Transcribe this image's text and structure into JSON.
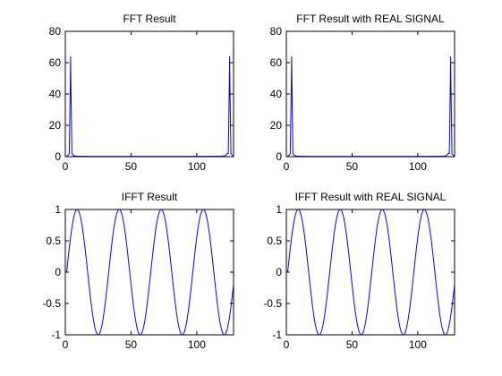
{
  "figure": {
    "background": "#ffffff"
  },
  "chart_data": [
    {
      "type": "line",
      "title": "FFT Result",
      "xlim": [
        0,
        128
      ],
      "ylim": [
        0,
        80
      ],
      "xticks": [
        0,
        50,
        100
      ],
      "yticks": [
        0,
        20,
        40,
        60,
        80
      ],
      "grid": false,
      "series": [
        {
          "color": "#0000ff",
          "x": [
            1,
            2,
            3,
            3.8,
            4,
            4.2,
            5,
            6,
            7,
            8,
            9,
            10,
            20,
            40,
            60,
            80,
            100,
            118,
            119,
            120,
            121,
            122,
            123,
            124,
            124.8,
            125,
            125.2,
            126,
            127,
            128
          ],
          "y": [
            0.5,
            0.8,
            2,
            48,
            64,
            48,
            2,
            0.8,
            0.5,
            0.4,
            0.3,
            0.3,
            0.2,
            0.2,
            0.2,
            0.2,
            0.2,
            0.3,
            0.3,
            0.4,
            0.5,
            0.8,
            2,
            2,
            48,
            64,
            48,
            2,
            0.8,
            0.5
          ]
        }
      ]
    },
    {
      "type": "line",
      "title": "FFT Result with REAL SIGNAL",
      "xlim": [
        0,
        128
      ],
      "ylim": [
        0,
        80
      ],
      "xticks": [
        0,
        50,
        100
      ],
      "yticks": [
        0,
        20,
        40,
        60,
        80
      ],
      "grid": false,
      "series": [
        {
          "color": "#0000ff",
          "x": [
            1,
            2,
            3,
            3.8,
            4,
            4.2,
            5,
            6,
            7,
            8,
            9,
            10,
            20,
            40,
            60,
            80,
            100,
            118,
            119,
            120,
            121,
            122,
            123,
            124,
            124.8,
            125,
            125.2,
            126,
            127,
            128
          ],
          "y": [
            0.5,
            0.8,
            2,
            48,
            64,
            48,
            2,
            0.8,
            0.5,
            0.4,
            0.3,
            0.3,
            0.2,
            0.2,
            0.2,
            0.2,
            0.2,
            0.3,
            0.3,
            0.4,
            0.5,
            0.8,
            2,
            2,
            48,
            64,
            48,
            2,
            0.8,
            0.5
          ]
        }
      ]
    },
    {
      "type": "line",
      "title": "IFFT Result",
      "xlim": [
        0,
        128
      ],
      "ylim": [
        -1,
        1
      ],
      "xticks": [
        0,
        50,
        100
      ],
      "yticks": [
        -1,
        -0.5,
        0,
        0.5,
        1
      ],
      "grid": false,
      "series": [
        {
          "color": "#0000ff",
          "function": "sine",
          "amplitude": 1,
          "period": 32,
          "phase": 0,
          "x_start": 1,
          "x_end": 128
        }
      ]
    },
    {
      "type": "line",
      "title": "IFFT Result with REAL SIGNAL",
      "xlim": [
        0,
        128
      ],
      "ylim": [
        -1,
        1
      ],
      "xticks": [
        0,
        50,
        100
      ],
      "yticks": [
        -1,
        -0.5,
        0,
        0.5,
        1
      ],
      "grid": false,
      "series": [
        {
          "color": "#0000ff",
          "function": "sine",
          "amplitude": 1,
          "period": 32,
          "phase": 0,
          "x_start": 1,
          "x_end": 128
        }
      ]
    }
  ]
}
